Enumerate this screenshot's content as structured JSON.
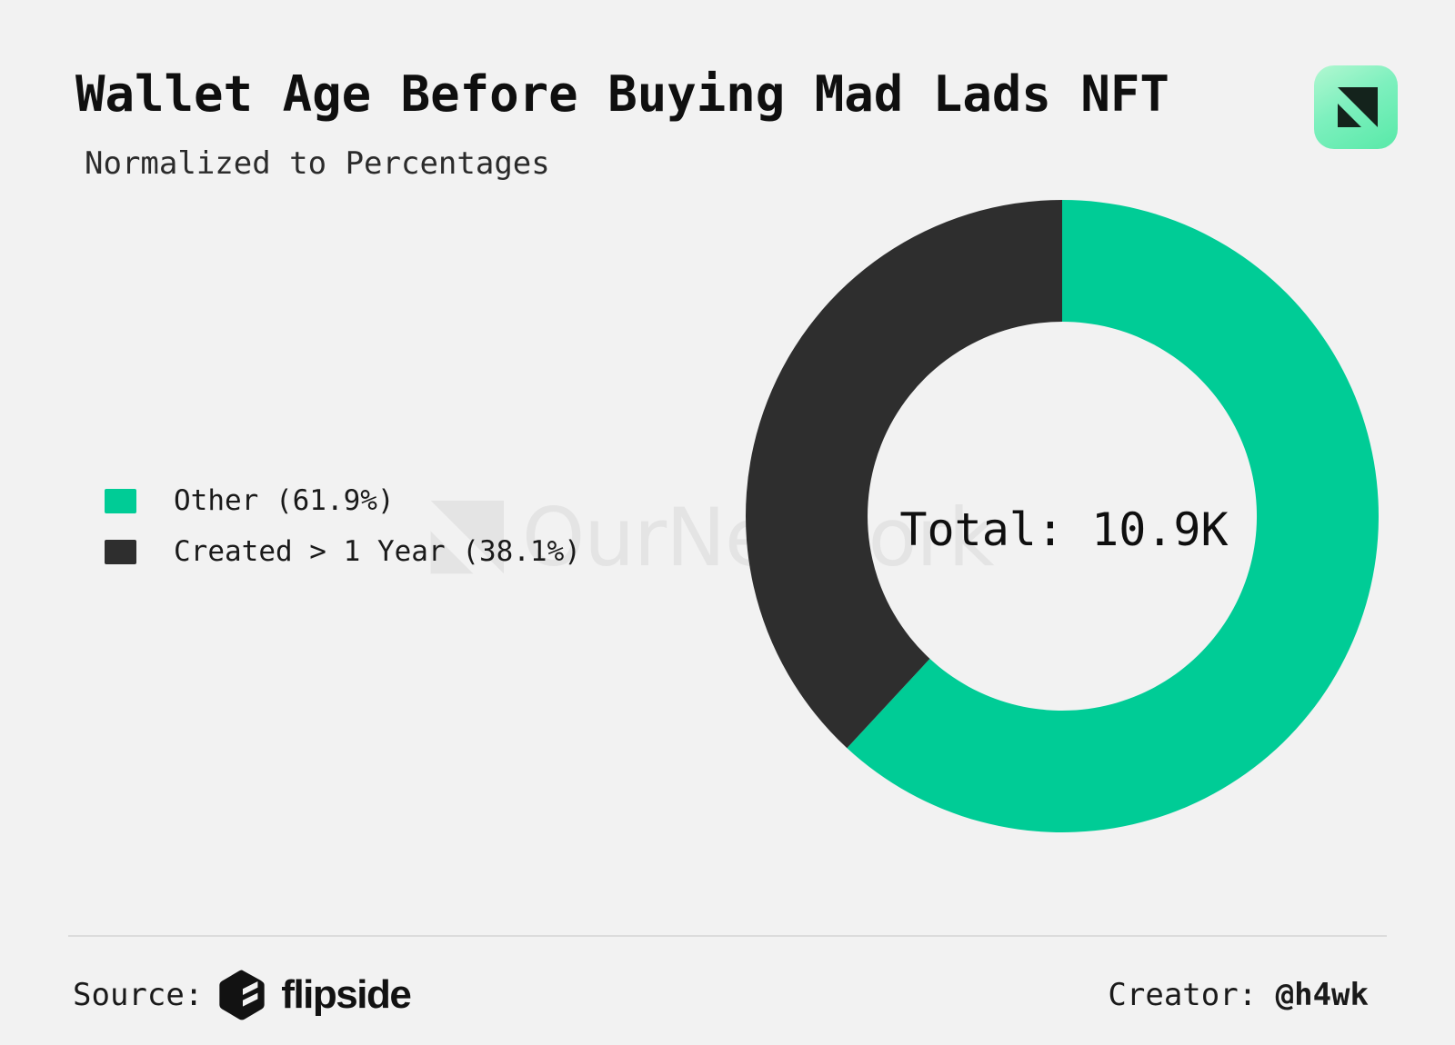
{
  "header": {
    "title": "Wallet Age Before Buying Mad Lads NFT",
    "subtitle": "Normalized to Percentages"
  },
  "watermark": {
    "text": "OurNetwork",
    "color": "#e4e4e4"
  },
  "chart_data": {
    "type": "pie",
    "title": "Wallet Age Before Buying Mad Lads NFT",
    "subtitle": "Normalized to Percentages",
    "hole_ratio": 0.615,
    "start_angle": "top",
    "direction": "clockwise",
    "total_label": "Total: 10.9K",
    "total_value": "10.9K",
    "legend_position": "left",
    "slices": [
      {
        "label": "Other",
        "value": 61.9,
        "color": "#00cc96",
        "legend_label": "Other (61.9%)"
      },
      {
        "label": "Created > 1 Year",
        "value": 38.1,
        "color": "#2e2e2e",
        "legend_label": "Created > 1 Year (38.1%)"
      }
    ]
  },
  "footer": {
    "source_label": "Source:",
    "source_name": "flipside",
    "creator_label": "Creator: ",
    "creator_handle": "@h4wk"
  },
  "colors": {
    "background": "#f2f2f2",
    "accent_green": "#00cc96",
    "slice_dark": "#2e2e2e",
    "tile_gradient_start": "#b2f7d1",
    "tile_gradient_end": "#58e9a8",
    "watermark_gray": "#e4e4e4"
  }
}
